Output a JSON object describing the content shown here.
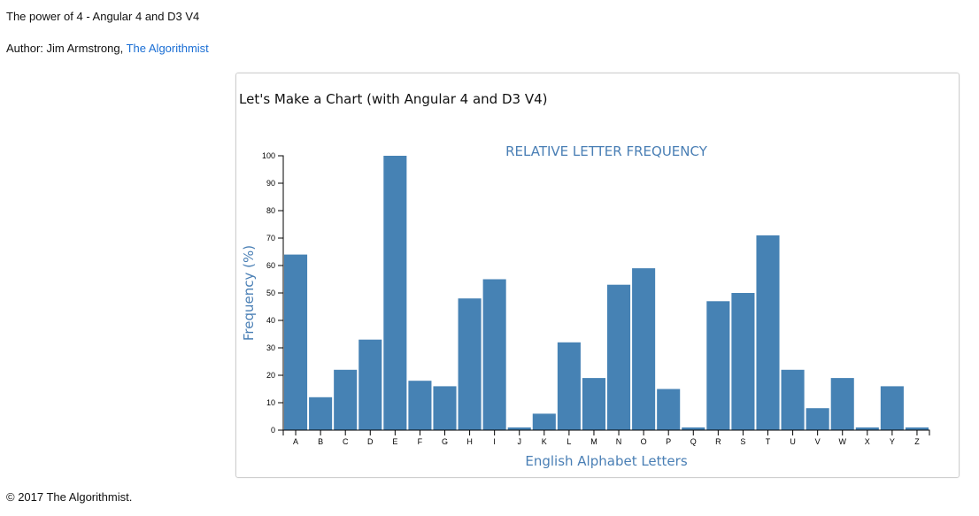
{
  "page": {
    "title": "The power of 4 - Angular 4 and D3 V4",
    "author_prefix": "Author: Jim Armstrong, ",
    "author_link": "The Algorithmist",
    "footer": "© 2017 The Algorithmist."
  },
  "panel": {
    "title": "Let's Make a Chart (with Angular 4 and D3 V4)"
  },
  "colors": {
    "bar": "#4682b4",
    "label": "#4a7fb5",
    "axis": "#000000"
  },
  "chart_data": {
    "type": "bar",
    "title": "RELATIVE LETTER FREQUENCY",
    "xlabel": "English Alphabet Letters",
    "ylabel": "Frequency (%)",
    "ylim": [
      0,
      100
    ],
    "yticks": [
      0,
      10,
      20,
      30,
      40,
      50,
      60,
      70,
      80,
      90,
      100
    ],
    "categories": [
      "A",
      "B",
      "C",
      "D",
      "E",
      "F",
      "G",
      "H",
      "I",
      "J",
      "K",
      "L",
      "M",
      "N",
      "O",
      "P",
      "Q",
      "R",
      "S",
      "T",
      "U",
      "V",
      "W",
      "X",
      "Y",
      "Z"
    ],
    "values": [
      64,
      12,
      22,
      33,
      100,
      18,
      16,
      48,
      55,
      1,
      6,
      32,
      19,
      53,
      59,
      15,
      1,
      47,
      50,
      71,
      22,
      8,
      19,
      1,
      16,
      1
    ],
    "grid": false,
    "legend": "none"
  }
}
